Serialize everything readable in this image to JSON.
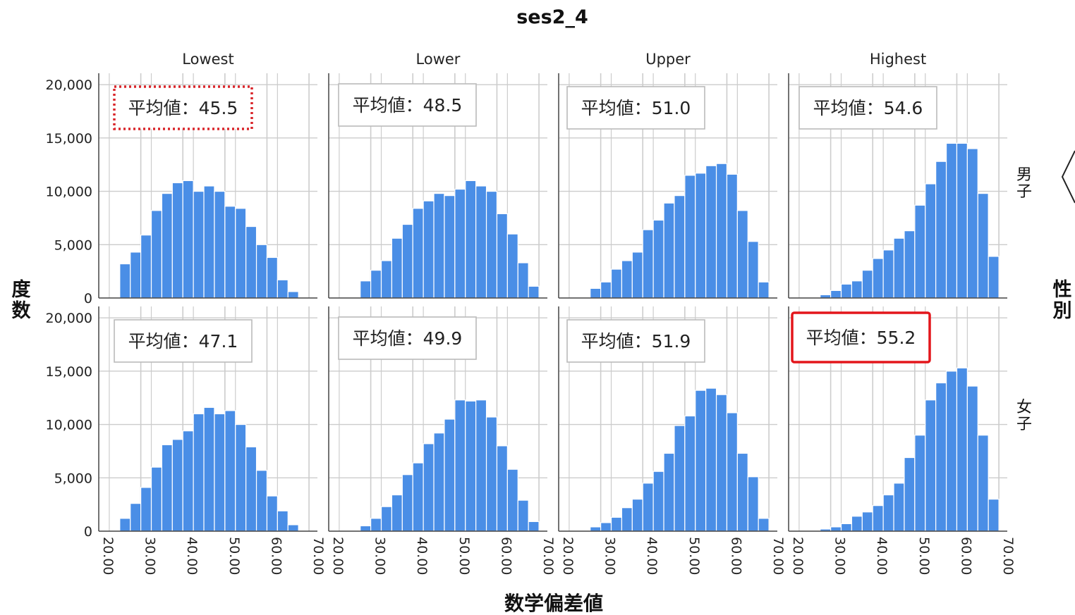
{
  "chart_data": {
    "type": "bar",
    "title": "ses2_4",
    "xlabel": "数学偏差値",
    "ylabel": "度数",
    "row_title": "性別",
    "columns": [
      "Lowest",
      "Lower",
      "Upper",
      "Highest"
    ],
    "rows": [
      "男子",
      "女子"
    ],
    "x_ticks": [
      "20.00",
      "30.00",
      "40.00",
      "50.00",
      "60.00",
      "70.00"
    ],
    "y_ticks": [
      "0",
      "5,000",
      "10,000",
      "15,000",
      "20,000"
    ],
    "xlim": [
      20,
      72
    ],
    "ylim": [
      0,
      21000
    ],
    "bin_start": 25,
    "bin_width": 2.5,
    "grid": true,
    "bar_color": "#4a8ee6",
    "highlight_dotted_color": "#d9252a",
    "highlight_solid_color": "#e3161b",
    "panels": [
      {
        "row": "男子",
        "column": "Lowest",
        "mean_label": "平均値：45.5",
        "highlight": "dotted",
        "values": [
          3200,
          4300,
          5900,
          8200,
          9800,
          10800,
          11000,
          10000,
          10500,
          10000,
          8600,
          8400,
          6700,
          5000,
          3800,
          1700,
          600
        ]
      },
      {
        "row": "男子",
        "column": "Lower",
        "mean_label": "平均値：48.5",
        "highlight": "none",
        "values": [
          0,
          1600,
          2600,
          3500,
          5600,
          6900,
          8400,
          9100,
          9800,
          9600,
          10200,
          11000,
          10500,
          10000,
          7900,
          6000,
          3300,
          1100
        ]
      },
      {
        "row": "男子",
        "column": "Upper",
        "mean_label": "平均値：51.0",
        "highlight": "none",
        "values": [
          0,
          900,
          1500,
          2700,
          3500,
          4300,
          6400,
          7300,
          8900,
          9600,
          11500,
          11700,
          12400,
          12600,
          11600,
          8200,
          5300,
          1500
        ]
      },
      {
        "row": "男子",
        "column": "Highest",
        "mean_label": "平均値：54.6",
        "highlight": "none",
        "values": [
          0,
          300,
          700,
          1300,
          1600,
          2600,
          3700,
          4500,
          5600,
          6300,
          8700,
          10700,
          12800,
          14500,
          14500,
          14000,
          9800,
          3900
        ]
      },
      {
        "row": "女子",
        "column": "Lowest",
        "mean_label": "平均値：47.1",
        "highlight": "none",
        "values": [
          1200,
          2600,
          4100,
          6000,
          8100,
          8600,
          9400,
          11000,
          11600,
          11000,
          11300,
          10000,
          7900,
          5700,
          3300,
          1900,
          600
        ]
      },
      {
        "row": "女子",
        "column": "Lower",
        "mean_label": "平均値：49.9",
        "highlight": "none",
        "values": [
          0,
          500,
          1200,
          2300,
          3400,
          5300,
          6400,
          8200,
          9200,
          10500,
          12300,
          12200,
          12300,
          10700,
          8000,
          5800,
          2900,
          900
        ]
      },
      {
        "row": "女子",
        "column": "Upper",
        "mean_label": "平均値：51.9",
        "highlight": "none",
        "values": [
          0,
          400,
          800,
          1300,
          2200,
          3000,
          4500,
          5600,
          7300,
          9900,
          10800,
          13200,
          13400,
          12800,
          11100,
          7300,
          5100,
          1200
        ]
      },
      {
        "row": "女子",
        "column": "Highest",
        "mean_label": "平均値：55.2",
        "highlight": "solid",
        "values": [
          0,
          200,
          400,
          700,
          1400,
          1800,
          2400,
          3400,
          4500,
          6900,
          9000,
          12300,
          13900,
          15000,
          15300,
          13600,
          9000,
          3000
        ]
      }
    ]
  }
}
